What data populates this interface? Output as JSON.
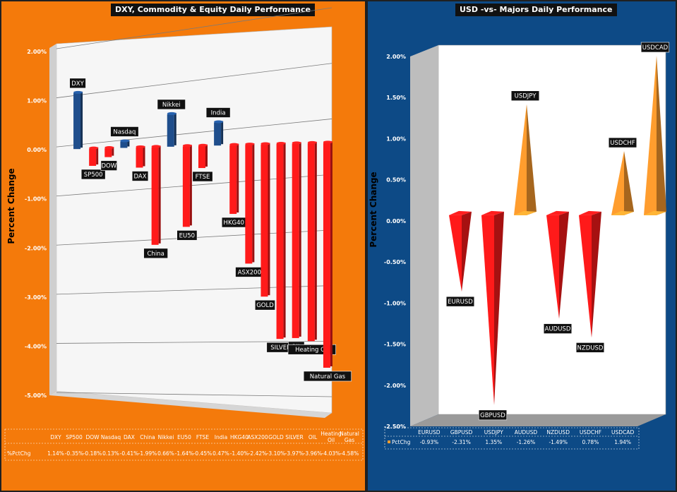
{
  "left": {
    "title": "DXY, Commodity & Equity Daily Performance",
    "row_label": "%PctChg"
  },
  "right": {
    "title": "USD -vs- Majors Daily Performance",
    "row_label": "PctChg"
  },
  "chart_data": [
    {
      "type": "bar",
      "title": "DXY, Commodity & Equity Daily Performance",
      "ylabel": "Percent Change",
      "ylim": [
        -5,
        2
      ],
      "yticks": [
        "2.00%",
        "1.00%",
        "0.00%",
        "-1.00%",
        "-2.00%",
        "-3.00%",
        "-4.00%",
        "-5.00%"
      ],
      "categories": [
        "DXY",
        "SP500",
        "DOW",
        "Nasdaq",
        "DAX",
        "China",
        "Nikkei",
        "EU50",
        "FTSE",
        "India",
        "HKG40",
        "ASX200",
        "GOLD",
        "SILVER",
        "OIL",
        "Heating Oil",
        "Natural Gas"
      ],
      "callouts": [
        "DXY",
        "SP500",
        "DOW",
        "Nasdaq",
        "DAX",
        "China",
        "Nikkei",
        "EU50",
        "FTSE",
        "India",
        "HKG40",
        "ASX200",
        "GOLD",
        "SILVER",
        "OIL",
        "Heating Oil",
        "Natural Gas"
      ],
      "values": [
        1.14,
        -0.35,
        -0.18,
        0.13,
        -0.41,
        -1.99,
        0.66,
        -1.64,
        -0.45,
        0.47,
        -1.4,
        -2.42,
        -3.1,
        -3.97,
        -3.96,
        -4.03,
        -4.58
      ],
      "table_values": [
        "1.14%",
        "-0.35%",
        "-0.18%",
        "0.13%",
        "-0.41%",
        "-1.99%",
        "0.66%",
        "-1.64%",
        "-0.45%",
        "0.47%",
        "-1.40%",
        "-2.42%",
        "-3.10%",
        "-3.97%",
        "-3.96%",
        "-4.03%",
        "-4.58%"
      ],
      "colors": {
        "positive": "#1f4e8c",
        "negative": "#ff1a1a"
      },
      "grid": true
    },
    {
      "type": "bar",
      "title": "USD -vs- Majors Daily Performance",
      "ylabel": "Percent Change",
      "ylim": [
        -2.5,
        2.0
      ],
      "yticks": [
        "2.00%",
        "1.50%",
        "1.00%",
        "0.50%",
        "0.00%",
        "-0.50%",
        "-1.00%",
        "-1.50%",
        "-2.00%",
        "-2.50%"
      ],
      "categories": [
        "EURUSD",
        "GBPUSD",
        "USDJPY",
        "AUDUSD",
        "NZDUSD",
        "USDCHF",
        "USDCAD"
      ],
      "callouts": [
        "EURUSD",
        "GBPUSD",
        "USDJPY",
        "AUDUSD",
        "NZDUSD",
        "USDCHF",
        "USDCAD"
      ],
      "values": [
        -0.93,
        -2.31,
        1.35,
        -1.26,
        -1.49,
        0.78,
        1.94
      ],
      "table_values": [
        "-0.93%",
        "-2.31%",
        "1.35%",
        "-1.26%",
        "-1.49%",
        "0.78%",
        "1.94%"
      ],
      "colors": {
        "positive": "#ff9d2e",
        "negative": "#ff1a1a"
      },
      "grid": false
    }
  ]
}
